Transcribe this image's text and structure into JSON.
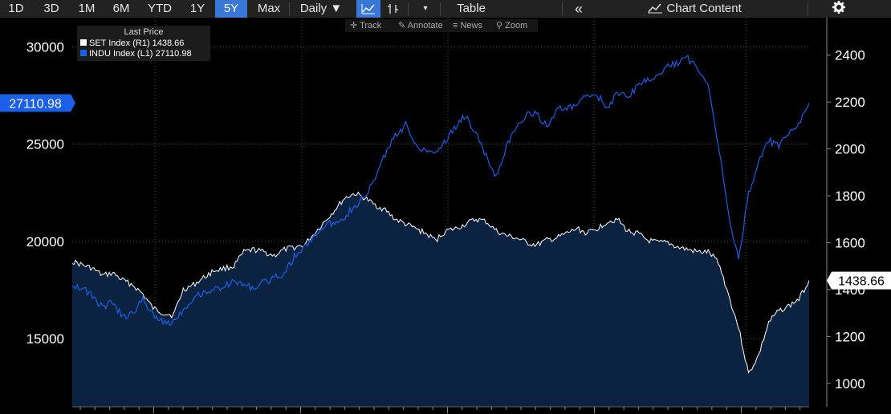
{
  "toolbar": {
    "ranges": [
      "1D",
      "3D",
      "1M",
      "6M",
      "YTD",
      "1Y",
      "5Y",
      "Max"
    ],
    "active_range": "5Y",
    "frequency": "Daily ▼",
    "table_label": "Table",
    "collapse_label": "«",
    "chart_content_label": "Chart Content",
    "line_icon": "line-chart-icon",
    "bar_icon": "bar-chart-icon",
    "settings_icon": "gear-icon"
  },
  "subtools": [
    {
      "icon": "crosshair-icon",
      "label": "Track"
    },
    {
      "icon": "pencil-icon",
      "label": "Annotate"
    },
    {
      "icon": "news-icon",
      "label": "News"
    },
    {
      "icon": "magnifier-icon",
      "label": "Zoom"
    }
  ],
  "legend": {
    "title": "Last Price",
    "rows": [
      {
        "text": "SET Index  (R1)    1438.66",
        "color": "#ffffff"
      },
      {
        "text": "INDU Index  (L1) 27110.98",
        "color": "#1a5fe6"
      }
    ]
  },
  "chart_data": {
    "type": "line",
    "title": "",
    "frequency": "Daily",
    "range": "5Y",
    "left_axis": {
      "ticks": [
        15000,
        20000,
        25000,
        30000
      ],
      "range": [
        11500,
        31500
      ],
      "series": "INDU Index"
    },
    "right_axis": {
      "ticks": [
        1000,
        1200,
        1400,
        1600,
        1800,
        2000,
        2200,
        2400
      ],
      "range": [
        900,
        2560
      ],
      "series": "SET Index"
    },
    "last_value_labels": {
      "left": "27110.98",
      "right": "1438.66"
    },
    "grid": true,
    "series": [
      {
        "name": "SET Index",
        "axis": "right",
        "style": "area",
        "color": "#ffffff",
        "fill": "#0b2340",
        "last_value": 1438.66,
        "values": [
          1520,
          1505,
          1490,
          1460,
          1470,
          1440,
          1420,
          1380,
          1320,
          1300,
          1290,
          1400,
          1420,
          1450,
          1480,
          1490,
          1500,
          1560,
          1570,
          1560,
          1545,
          1570,
          1580,
          1590,
          1640,
          1690,
          1740,
          1790,
          1810,
          1790,
          1760,
          1740,
          1700,
          1680,
          1660,
          1640,
          1610,
          1650,
          1660,
          1680,
          1700,
          1690,
          1650,
          1630,
          1620,
          1600,
          1590,
          1610,
          1620,
          1640,
          1660,
          1640,
          1660,
          1690,
          1700,
          1650,
          1640,
          1610,
          1600,
          1600,
          1580,
          1570,
          1560,
          1560,
          1520,
          1380,
          1240,
          1040,
          1120,
          1260,
          1310,
          1330,
          1360,
          1438.66
        ]
      },
      {
        "name": "INDU Index",
        "axis": "left",
        "style": "line",
        "color": "#1a5fe6",
        "last_value": 27110.98,
        "values": [
          17800,
          17600,
          17200,
          16600,
          16900,
          16100,
          16300,
          17000,
          16300,
          15800,
          15900,
          16500,
          17100,
          17400,
          17500,
          17700,
          17900,
          17800,
          17600,
          17900,
          18100,
          18400,
          19200,
          19700,
          20300,
          20800,
          21000,
          21300,
          21800,
          22300,
          23200,
          24500,
          25400,
          26000,
          25000,
          24700,
          24600,
          25200,
          25900,
          26500,
          25500,
          24400,
          23300,
          24900,
          25800,
          26500,
          26600,
          25900,
          26800,
          26800,
          27000,
          27500,
          27500,
          26900,
          27600,
          27400,
          28000,
          28300,
          28500,
          29000,
          29200,
          29400,
          28900,
          28100,
          25000,
          21500,
          19000,
          22500,
          24000,
          25200,
          24900,
          25500,
          26000,
          27110.98
        ]
      }
    ]
  }
}
